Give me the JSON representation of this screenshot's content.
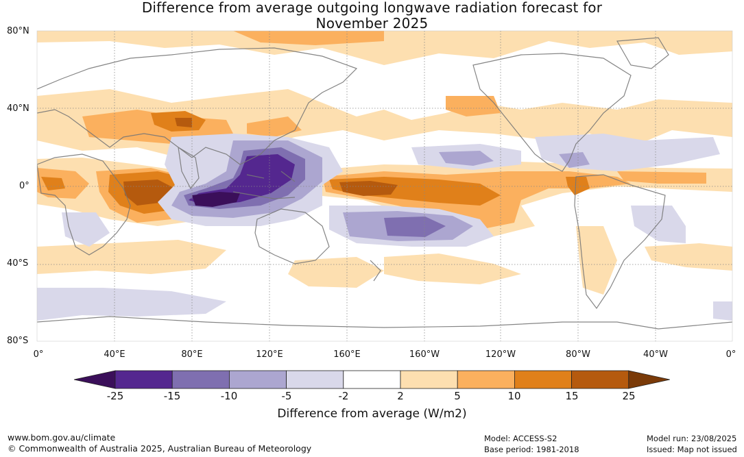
{
  "title_line1": "Difference from average outgoing longwave radiation forecast for",
  "title_line2": "November 2025",
  "lat_labels": [
    "80°N",
    "40°N",
    "0°",
    "40°S",
    "80°S"
  ],
  "lon_labels": [
    "0°",
    "40°E",
    "80°E",
    "120°E",
    "160°E",
    "160°W",
    "120°W",
    "80°W",
    "40°W",
    "0°"
  ],
  "colorbar": {
    "ticks": [
      "-25",
      "-15",
      "-10",
      "-5",
      "-2",
      "2",
      "5",
      "10",
      "15",
      "25"
    ],
    "colors": [
      "#3b0f5a",
      "#54278f",
      "#7f6fb0",
      "#aca6d0",
      "#d9d8ea",
      "#ffffff",
      "#fddfb0",
      "#fbb05e",
      "#e0801a",
      "#b55a0e",
      "#7a3a08"
    ],
    "title": "Difference from average (W/m2)"
  },
  "footer": {
    "url": "www.bom.gov.au/climate",
    "copyright": "© Commonwealth of Australia 2025, Australian Bureau of Meteorology",
    "model": "Model: ACCESS-S2",
    "base_period": "Base period: 1981-2018",
    "model_run": "Model run: 23/08/2025",
    "issued": "Issued: Map not issued"
  },
  "map": {
    "land_color": "#777777",
    "grid_color": "#888888"
  }
}
